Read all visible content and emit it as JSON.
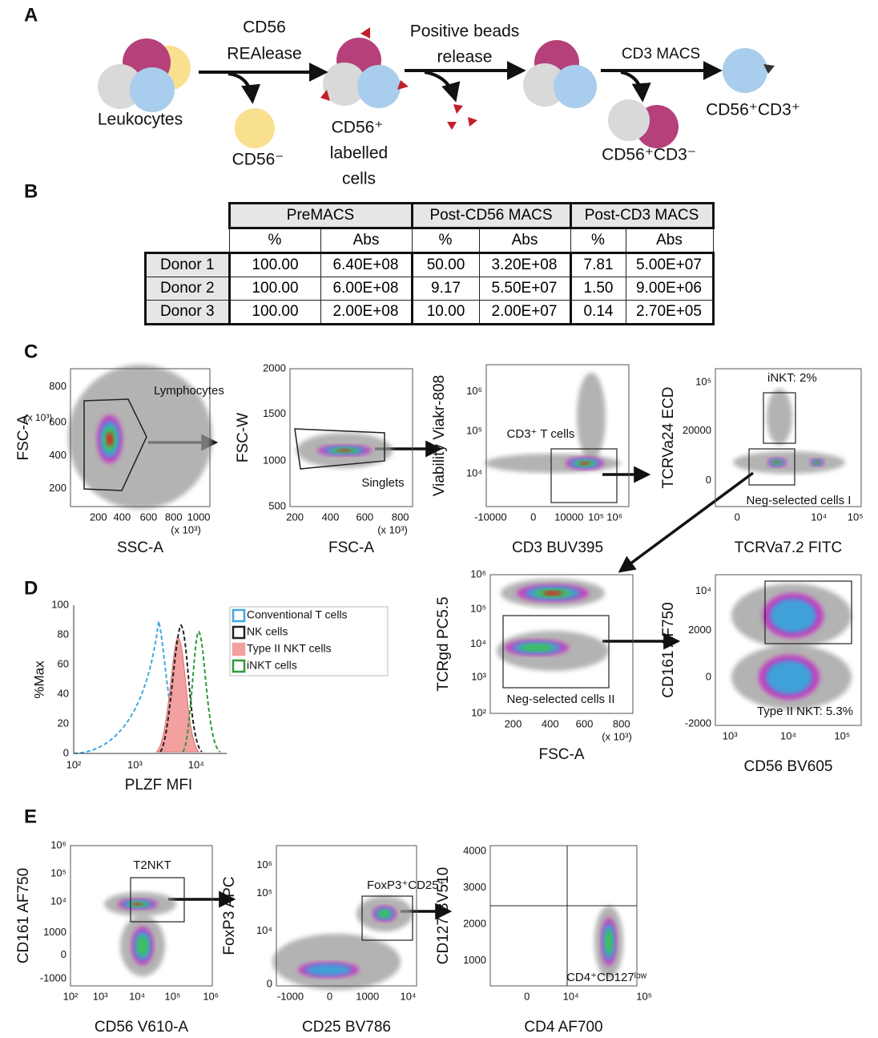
{
  "panel_labels": [
    "A",
    "B",
    "C",
    "D",
    "E"
  ],
  "schematic": {
    "leukocytes": "Leukocytes",
    "step1": [
      "CD56",
      "REAlease"
    ],
    "cd56_neg": "CD56⁻",
    "labelled": [
      "CD56⁺",
      "labelled",
      "cells"
    ],
    "step2": [
      "Positive beads",
      "release"
    ],
    "step3": "CD3 MACS",
    "cd3_pos": "CD56⁺CD3⁺",
    "cd3_neg": "CD56⁺CD3⁻"
  },
  "table": {
    "groups": [
      "PreMACS",
      "Post-CD56 MACS",
      "Post-CD3 MACS"
    ],
    "subheaders": [
      "%",
      "Abs",
      "%",
      "Abs",
      "%",
      "Abs"
    ],
    "rows": [
      [
        "Donor 1",
        "100.00",
        "6.40E+08",
        "50.00",
        "3.20E+08",
        "7.81",
        "5.00E+07"
      ],
      [
        "Donor 2",
        "100.00",
        "6.00E+08",
        "9.17",
        "5.50E+07",
        "1.50",
        "9.00E+06"
      ],
      [
        "Donor 3",
        "100.00",
        "2.00E+08",
        "10.00",
        "2.00E+07",
        "0.14",
        "2.70E+05"
      ]
    ]
  },
  "plots": [
    {
      "ylabel": "FSC-A",
      "y_multiplier": "(x 10³)",
      "xlabel": "SSC-A",
      "x_multiplier": "(x 10³)",
      "xticks": [
        "200",
        "400",
        "600",
        "800",
        "1000"
      ],
      "yticks": [
        "200",
        "400",
        "600",
        "800"
      ],
      "gates": [
        "Lymphocytes"
      ]
    },
    {
      "ylabel": "FSC-W",
      "xlabel": "FSC-A",
      "x_multiplier": "(x 10³)",
      "xticks": [
        "200",
        "400",
        "600",
        "800"
      ],
      "yticks": [
        "500",
        "1000",
        "1500",
        "2000"
      ],
      "gates": [
        "Singlets"
      ]
    },
    {
      "ylabel": "Viability Viakr-808",
      "xlabel": "CD3 BUV395",
      "xticks": [
        "-10000",
        "0",
        "10000",
        "10⁵",
        "10⁶"
      ],
      "yticks": [
        "10⁴",
        "10⁵",
        "10⁶"
      ],
      "gates": [
        "CD3⁺ T cells"
      ]
    },
    {
      "ylabel": "TCRVa24 ECD",
      "xlabel": "TCRVa7.2 FITC",
      "xticks": [
        "0",
        "10⁴",
        "10⁵"
      ],
      "yticks": [
        "0",
        "20000",
        "10⁵"
      ],
      "gates": [
        "iNKT: 2%",
        "Neg-selected cells I"
      ]
    },
    {
      "ylabel": "TCRgd PC5.5",
      "xlabel": "FSC-A",
      "x_multiplier": "(x 10³)",
      "xticks": [
        "200",
        "400",
        "600",
        "800"
      ],
      "yticks": [
        "10²",
        "10³",
        "10⁴",
        "10⁵",
        "10⁶"
      ],
      "gates": [
        "Neg-selected cells II"
      ]
    },
    {
      "ylabel": "CD161 AF750",
      "xlabel": "CD56 BV605",
      "xticks": [
        "10³",
        "10⁴",
        "10⁵"
      ],
      "yticks": [
        "-2000",
        "0",
        "2000",
        "10⁴"
      ],
      "gates": [
        "Type II NKT: 5.3%"
      ]
    },
    {
      "ylabel": "CD161 AF750",
      "xlabel": "CD56 V610-A",
      "xticks": [
        "10²",
        "10³",
        "10⁴",
        "10⁵",
        "10⁶"
      ],
      "yticks": [
        "-1000",
        "0",
        "1000",
        "10⁴",
        "10⁵",
        "10⁶"
      ],
      "gates": [
        "T2NKT"
      ]
    },
    {
      "ylabel": "FoxP3 APC",
      "xlabel": "CD25 BV786",
      "xticks": [
        "-1000",
        "0",
        "1000",
        "10⁴"
      ],
      "yticks": [
        "0",
        "10⁴",
        "10⁵",
        "10⁶"
      ],
      "gates": [
        "FoxP3⁺CD25⁺"
      ]
    },
    {
      "ylabel": "CD127 BV510",
      "xlabel": "CD4 AF700",
      "xticks": [
        "0",
        "10⁴",
        "10⁵"
      ],
      "yticks": [
        "1000",
        "2000",
        "3000",
        "4000"
      ],
      "gates": [
        "CD4⁺CD127ˡᵒʷ"
      ]
    }
  ],
  "histogram": {
    "ylabel": "%Max",
    "xlabel": "PLZF MFI",
    "xticks": [
      "10²",
      "10³",
      "10⁴"
    ],
    "yticks": [
      "0",
      "20",
      "40",
      "60",
      "80",
      "100"
    ],
    "legend": [
      {
        "name": "Conventional T cells",
        "color": "#3fa9e0"
      },
      {
        "name": "NK cells",
        "color": "#222222"
      },
      {
        "name": "Type II NKT cells",
        "color": "#f2a0a0"
      },
      {
        "name": "iNKT cells",
        "color": "#2e9a3a"
      }
    ]
  }
}
